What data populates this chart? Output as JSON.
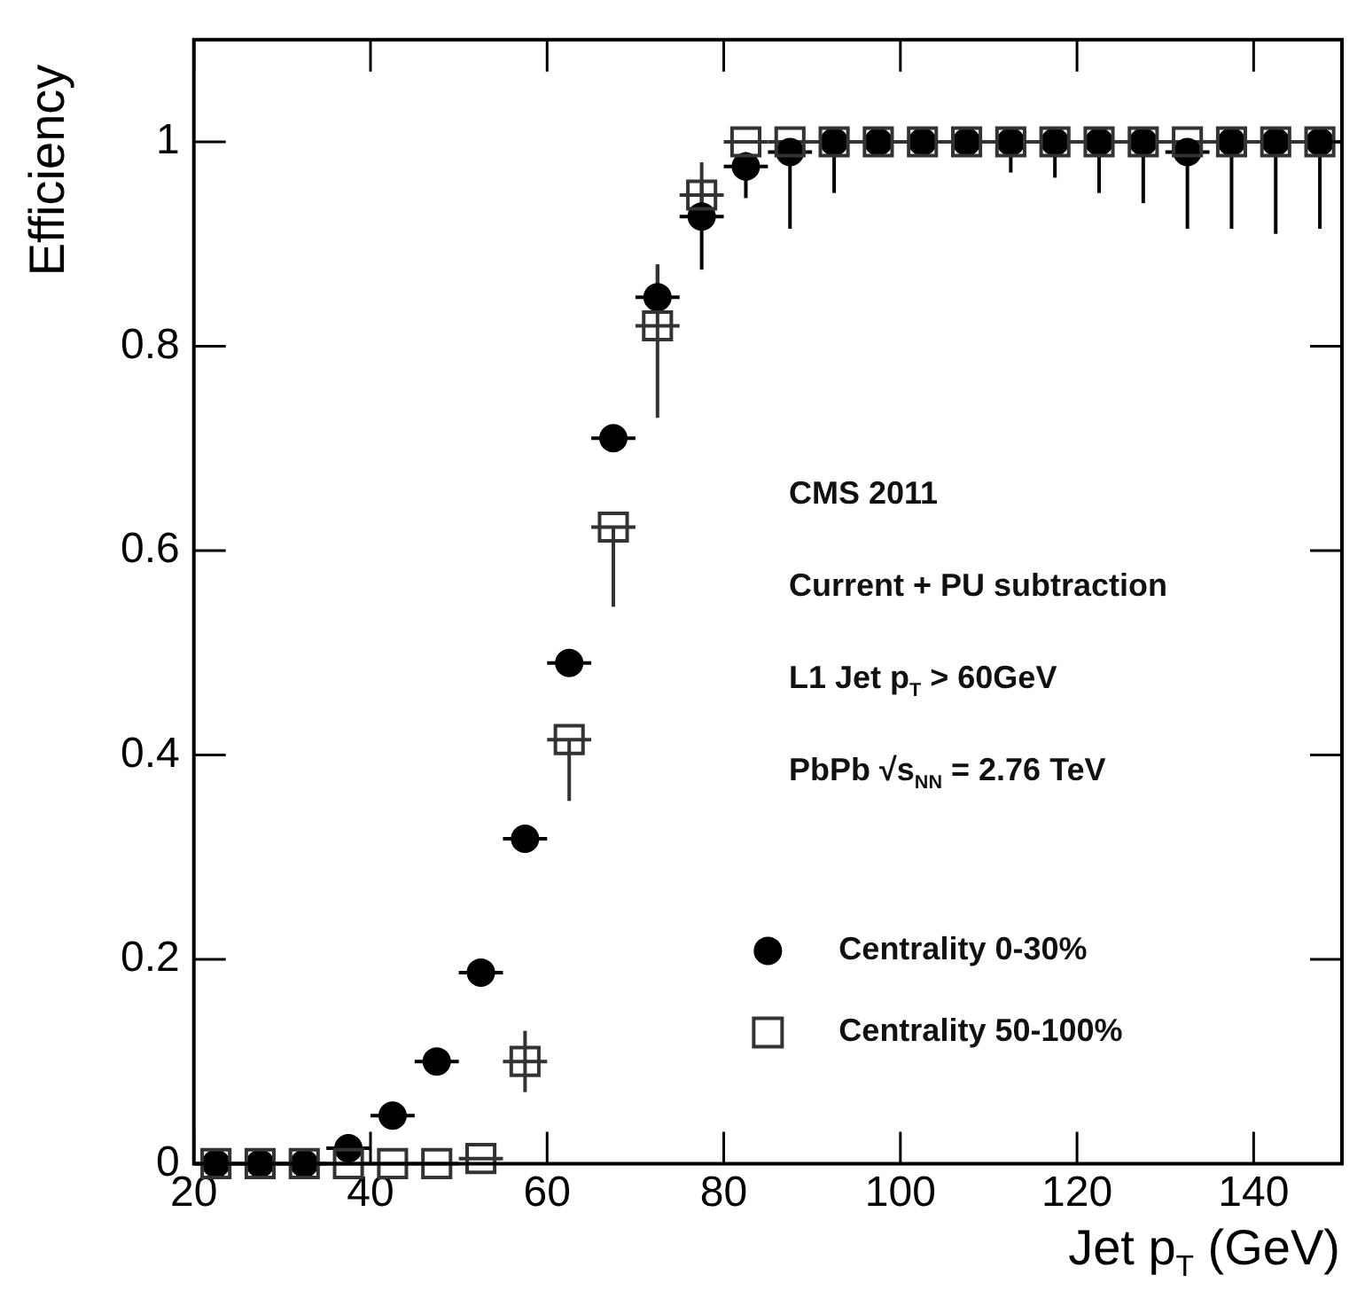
{
  "chart_data": {
    "type": "scatter",
    "xlabel": "Jet p$_{T}$ (GeV)",
    "ylabel": "Efficiency",
    "xlim": [
      20,
      150
    ],
    "xticks": [
      20,
      40,
      60,
      80,
      100,
      120,
      140
    ],
    "ylim": [
      0,
      1.1
    ],
    "yticks": [
      0,
      0.2,
      0.4,
      0.6,
      0.8,
      1
    ],
    "grid": false,
    "legend": "bottom right",
    "x": [
      22.5,
      27.5,
      32.5,
      37.5,
      42.5,
      47.5,
      52.5,
      57.5,
      62.5,
      67.5,
      72.5,
      77.5,
      82.5,
      87.5,
      92.5,
      97.5,
      102.5,
      107.5,
      112.5,
      117.5,
      122.5,
      127.5,
      132.5,
      137.5,
      142.5,
      147.5
    ],
    "series": [
      {
        "name": "Centrality 0-30%",
        "color": "#000000",
        "marker": "circle",
        "values": [
          0,
          0,
          0,
          0.015,
          0.047,
          0.1,
          0.187,
          0.318,
          0.49,
          0.71,
          0.848,
          0.927,
          0.976,
          0.99,
          1,
          1,
          1,
          1,
          1,
          1,
          1,
          1,
          0.99,
          1,
          1,
          1
        ],
        "errors": [
          null,
          null,
          null,
          null,
          null,
          null,
          null,
          null,
          null,
          null,
          [
            0.848,
            0.88
          ],
          [
            0.875,
            0.96
          ],
          [
            0.945,
            0.99
          ],
          [
            0.915,
            1
          ],
          [
            0.95,
            1
          ],
          null,
          null,
          null,
          [
            0.97,
            1
          ],
          [
            0.965,
            1
          ],
          [
            0.95,
            1
          ],
          [
            0.94,
            1
          ],
          [
            0.915,
            1
          ],
          [
            0.915,
            1
          ],
          [
            0.91,
            1
          ],
          [
            0.915,
            1
          ]
        ],
        "xerrors": [
          2.5,
          2.5,
          2.5,
          2.5,
          2.5,
          2.5,
          2.5,
          2.5,
          2.5,
          2.5,
          2.5,
          2.5,
          2.5,
          2.5,
          2.5,
          2.5,
          2.5,
          2.5,
          2.5,
          2.5,
          2.5,
          2.5,
          2.5,
          2.5,
          2.5,
          2.5
        ]
      },
      {
        "name": "Centrality 50-100%",
        "color": "#333333",
        "marker": "square",
        "values": [
          0,
          0,
          0,
          0,
          0,
          0,
          0.005,
          0.1,
          0.415,
          0.623,
          0.82,
          0.948,
          1,
          1,
          1,
          1,
          1,
          1,
          1,
          1,
          1,
          1,
          1,
          1,
          1,
          1
        ],
        "errors": [
          null,
          null,
          null,
          null,
          null,
          null,
          null,
          [
            0.07,
            0.13
          ],
          [
            0.355,
            0.415
          ],
          [
            0.545,
            0.623
          ],
          [
            0.73,
            0.88
          ],
          [
            0.915,
            0.98
          ],
          null,
          null,
          null,
          null,
          null,
          null,
          null,
          null,
          null,
          null,
          null,
          null,
          null,
          null
        ],
        "xerrors": [
          2.5,
          2.5,
          2.5,
          2.5,
          2.5,
          2.5,
          2.5,
          2.5,
          2.5,
          2.5,
          2.5,
          2.5,
          2.5,
          2.5,
          2.5,
          2.5,
          2.5,
          2.5,
          2.5,
          2.5,
          2.5,
          2.5,
          2.5,
          2.5,
          2.5,
          2.5
        ]
      }
    ],
    "annotations": [
      "CMS 2011",
      "Current + PU subtraction",
      "L1 Jet p$_{T}$ > 60GeV",
      "PbPb √s$_{NN}$ = 2.76 TeV"
    ]
  }
}
